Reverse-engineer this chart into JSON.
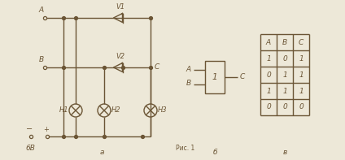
{
  "bg_color": "#ede8d8",
  "circuit_color": "#6b5535",
  "title_a": "a",
  "title_b": "б",
  "caption": "Рис. 1",
  "table_headers": [
    "A",
    "B",
    "C"
  ],
  "table_data": [
    [
      "1",
      "0",
      "1"
    ],
    [
      "0",
      "1",
      "1"
    ],
    [
      "1",
      "1",
      "1"
    ],
    [
      "0",
      "0",
      "0"
    ]
  ],
  "label_A": "A",
  "label_B": "B",
  "label_C": "C",
  "label_V1": "V1",
  "label_V2": "V2",
  "label_H1": "H1",
  "label_H2": "H2",
  "label_H3": "H3",
  "label_6V": "6B",
  "block_label": "1",
  "block_out": "C",
  "block_in_A": "A",
  "block_in_B": "B"
}
